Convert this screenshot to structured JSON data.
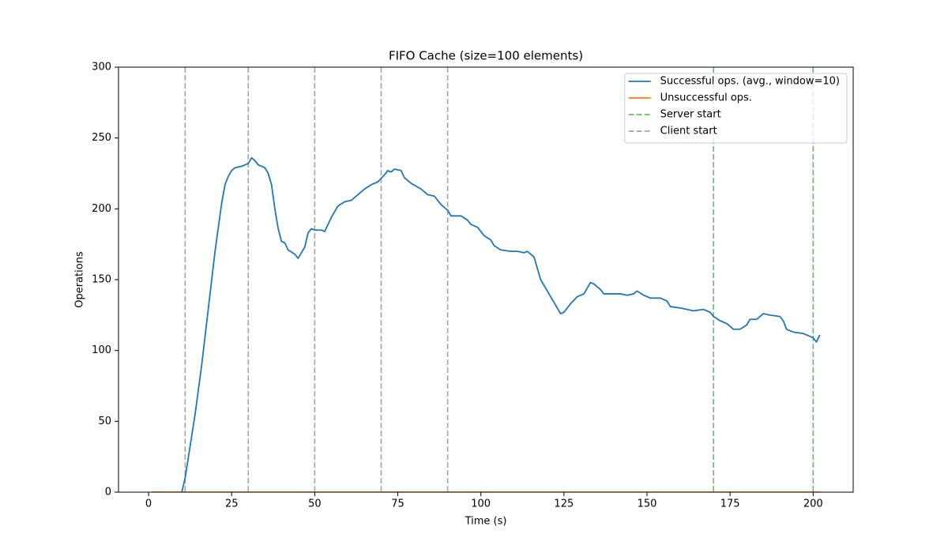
{
  "chart_data": {
    "type": "line",
    "title": "FIFO Cache (size=100 elements)",
    "xlabel": "Time (s)",
    "ylabel": "Operations",
    "xlim": [
      -9.05,
      212.05
    ],
    "xticks": [
      0,
      25,
      50,
      75,
      100,
      125,
      150,
      175,
      200
    ],
    "ylim": [
      0,
      300
    ],
    "yticks": [
      0,
      50,
      100,
      150,
      200,
      250,
      300
    ],
    "legend": "upper right",
    "series": [
      {
        "name": "Successful ops. (avg., window=10)",
        "color": "#1f77b4",
        "x": [
          10,
          11,
          12,
          14,
          16,
          18,
          20,
          22,
          23,
          24,
          25,
          26,
          28,
          30,
          31,
          32,
          33,
          35,
          36,
          37,
          38,
          39,
          40,
          41,
          42,
          44,
          45,
          47,
          48,
          49,
          50,
          52,
          53,
          55,
          57,
          59,
          61,
          63,
          65,
          67,
          69,
          71,
          72,
          73,
          74,
          76,
          77,
          79,
          82,
          84,
          86,
          88,
          90,
          91,
          94,
          96,
          97,
          99,
          101,
          103,
          104,
          106,
          109,
          111,
          113,
          114,
          116,
          118,
          121,
          123,
          124,
          125,
          127,
          129,
          131,
          133,
          134,
          136,
          137,
          140,
          142,
          144,
          146,
          147,
          149,
          151,
          154,
          156,
          157,
          160,
          162,
          164,
          167,
          169,
          170,
          172,
          174,
          176,
          178,
          180,
          181,
          183,
          185,
          187,
          190,
          191,
          192,
          194,
          197,
          199,
          200,
          201,
          202
        ],
        "values": [
          0,
          10,
          25,
          55,
          90,
          130,
          170,
          204,
          217,
          223,
          227,
          229,
          230,
          232,
          236,
          234,
          231,
          229,
          225,
          217,
          200,
          186,
          177,
          176,
          171,
          168,
          165,
          173,
          183,
          186,
          185,
          185,
          184,
          194,
          202,
          205,
          206,
          210,
          214,
          217,
          219,
          224,
          227,
          226,
          228,
          227,
          222,
          218,
          214,
          210,
          209,
          203,
          199,
          195,
          195,
          192,
          189,
          187,
          181,
          178,
          174,
          171,
          170,
          170,
          169,
          170,
          166,
          150,
          138,
          130,
          126,
          127,
          133,
          138,
          140,
          148,
          147,
          143,
          140,
          140,
          140,
          139,
          140,
          142,
          139,
          137,
          137,
          135,
          131,
          130,
          129,
          128,
          129,
          127,
          124,
          121,
          119,
          115,
          115,
          118,
          122,
          122,
          126,
          125,
          124,
          121,
          115,
          113,
          112,
          110,
          109,
          106,
          111
        ]
      },
      {
        "name": "Unsuccessful ops.",
        "color": "#ff7f0e",
        "x": [
          1,
          202
        ],
        "values": [
          0,
          0
        ]
      }
    ],
    "vlines": [
      {
        "name": "Server start",
        "color": "#2ca02c",
        "linestyle": "dashed",
        "x": [
          170,
          200
        ]
      },
      {
        "name": "Client start",
        "color": "#7f7f7f",
        "linestyle": "dashed",
        "x": [
          11,
          30,
          50,
          70,
          90
        ]
      }
    ]
  }
}
